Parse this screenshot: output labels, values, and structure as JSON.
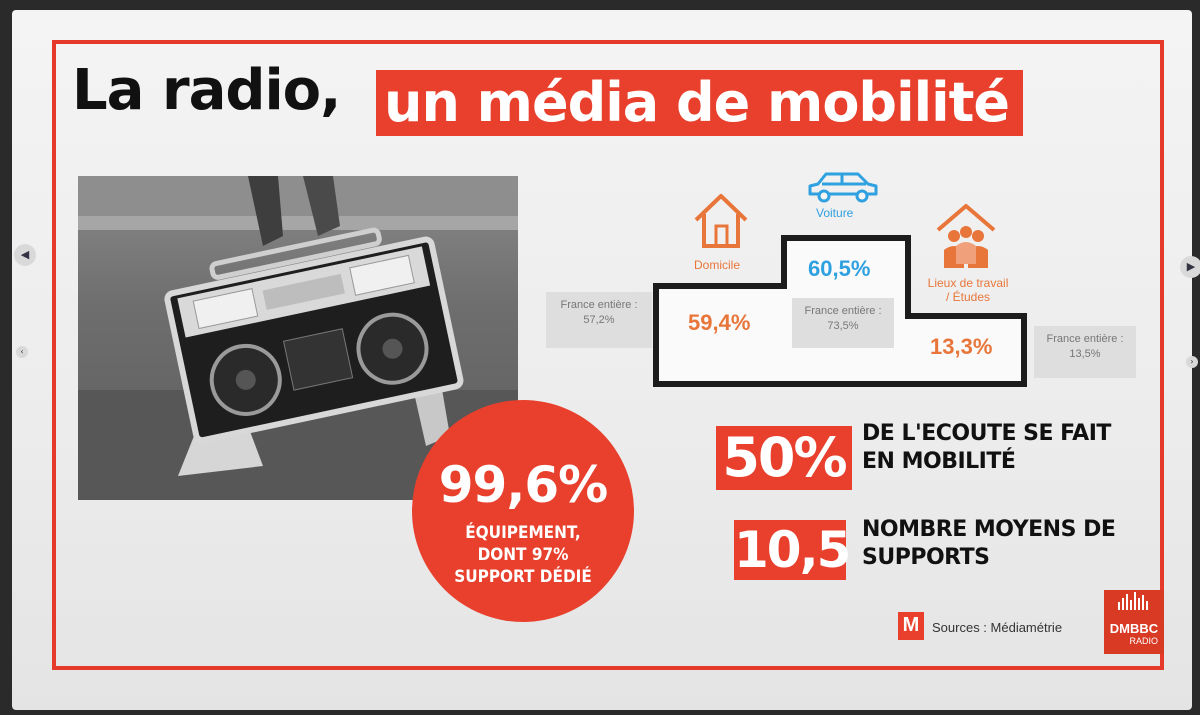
{
  "title": {
    "part1": "La radio,",
    "part2": "un média de mobilité"
  },
  "colors": {
    "accent": "#e8402c",
    "blue": "#2fa0e0",
    "orange": "#e8763a",
    "dark": "#111111"
  },
  "photo": {
    "description_icon": "boombox-photo"
  },
  "circle": {
    "value": "99,6%",
    "line1": "ÉQUIPEMENT,",
    "line2": "DONT 97%",
    "line3": "SUPPORT DÉDIÉ"
  },
  "locations": {
    "domicile": {
      "label": "Domicile",
      "value": "59,4%",
      "france_label": "France entière :",
      "france_value": "57,2%",
      "icon": "house-icon"
    },
    "voiture": {
      "label": "Voiture",
      "value": "60,5%",
      "france_label": "France entière :",
      "france_value": "73,5%",
      "icon": "car-icon"
    },
    "travail": {
      "label_line1": "Lieux de travail",
      "label_line2": "/ Études",
      "value": "13,3%",
      "france_label": "France entière :",
      "france_value": "13,5%",
      "icon": "workplace-people-icon"
    }
  },
  "stats": [
    {
      "value": "50%",
      "line1": "DE L'ECOUTE SE FAIT",
      "line2": "EN MOBILITÉ"
    },
    {
      "value": "10,5",
      "line1": "NOMBRE MOYENS DE",
      "line2": "SUPPORTS"
    }
  ],
  "footer": {
    "sources": "Sources : Médiamétrie",
    "m_logo": "M",
    "brand_line1": "DMBBC",
    "brand_line2": "RADIO"
  }
}
